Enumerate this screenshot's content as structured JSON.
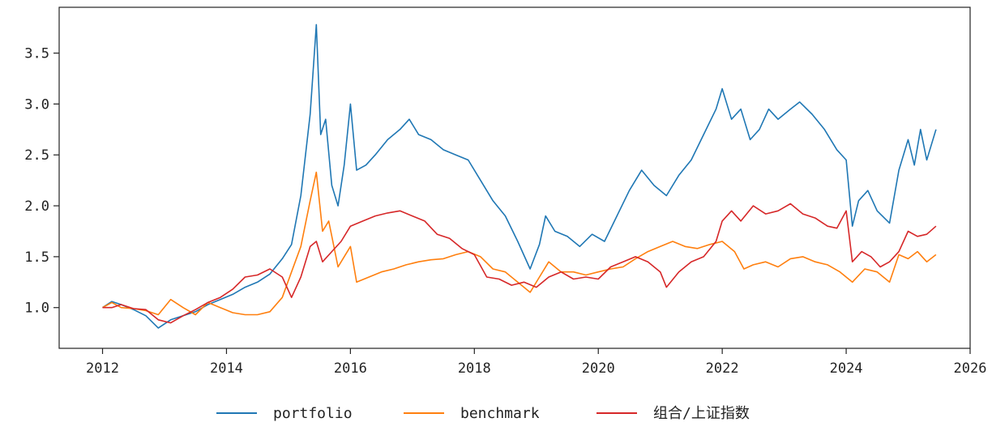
{
  "chart_data": {
    "type": "line",
    "title": "",
    "xlabel": "",
    "ylabel": "",
    "xlim": [
      2011.3,
      2026.0
    ],
    "ylim": [
      0.6,
      3.95
    ],
    "x_ticks": [
      2012,
      2014,
      2016,
      2018,
      2020,
      2022,
      2024,
      2026
    ],
    "y_ticks": [
      1.0,
      1.5,
      2.0,
      2.5,
      3.0,
      3.5
    ],
    "x_tick_labels": [
      "2012",
      "2014",
      "2016",
      "2018",
      "2020",
      "2022",
      "2024",
      "2026"
    ],
    "y_tick_labels": [
      "1.0",
      "1.5",
      "2.0",
      "2.5",
      "3.0",
      "3.5"
    ],
    "grid": false,
    "legend": "bottom-center",
    "series": [
      {
        "name": "portfolio",
        "color": "#1f77b4",
        "points": [
          [
            2012.0,
            1.0
          ],
          [
            2012.15,
            1.06
          ],
          [
            2012.3,
            1.03
          ],
          [
            2012.5,
            0.98
          ],
          [
            2012.7,
            0.92
          ],
          [
            2012.9,
            0.8
          ],
          [
            2013.1,
            0.88
          ],
          [
            2013.3,
            0.92
          ],
          [
            2013.5,
            0.96
          ],
          [
            2013.7,
            1.03
          ],
          [
            2013.9,
            1.08
          ],
          [
            2014.1,
            1.13
          ],
          [
            2014.3,
            1.2
          ],
          [
            2014.5,
            1.25
          ],
          [
            2014.7,
            1.33
          ],
          [
            2014.9,
            1.48
          ],
          [
            2015.05,
            1.62
          ],
          [
            2015.2,
            2.1
          ],
          [
            2015.35,
            2.9
          ],
          [
            2015.45,
            3.78
          ],
          [
            2015.52,
            2.7
          ],
          [
            2015.6,
            2.85
          ],
          [
            2015.7,
            2.2
          ],
          [
            2015.8,
            2.0
          ],
          [
            2015.9,
            2.4
          ],
          [
            2016.0,
            3.0
          ],
          [
            2016.1,
            2.35
          ],
          [
            2016.25,
            2.4
          ],
          [
            2016.4,
            2.5
          ],
          [
            2016.6,
            2.65
          ],
          [
            2016.8,
            2.75
          ],
          [
            2016.95,
            2.85
          ],
          [
            2017.1,
            2.7
          ],
          [
            2017.3,
            2.65
          ],
          [
            2017.5,
            2.55
          ],
          [
            2017.7,
            2.5
          ],
          [
            2017.9,
            2.45
          ],
          [
            2018.1,
            2.25
          ],
          [
            2018.3,
            2.05
          ],
          [
            2018.5,
            1.9
          ],
          [
            2018.7,
            1.65
          ],
          [
            2018.9,
            1.38
          ],
          [
            2019.05,
            1.62
          ],
          [
            2019.15,
            1.9
          ],
          [
            2019.3,
            1.75
          ],
          [
            2019.5,
            1.7
          ],
          [
            2019.7,
            1.6
          ],
          [
            2019.9,
            1.72
          ],
          [
            2020.1,
            1.65
          ],
          [
            2020.3,
            1.9
          ],
          [
            2020.5,
            2.15
          ],
          [
            2020.7,
            2.35
          ],
          [
            2020.9,
            2.2
          ],
          [
            2021.1,
            2.1
          ],
          [
            2021.3,
            2.3
          ],
          [
            2021.5,
            2.45
          ],
          [
            2021.7,
            2.7
          ],
          [
            2021.9,
            2.95
          ],
          [
            2022.0,
            3.15
          ],
          [
            2022.15,
            2.85
          ],
          [
            2022.3,
            2.95
          ],
          [
            2022.45,
            2.65
          ],
          [
            2022.6,
            2.75
          ],
          [
            2022.75,
            2.95
          ],
          [
            2022.9,
            2.85
          ],
          [
            2023.1,
            2.95
          ],
          [
            2023.25,
            3.02
          ],
          [
            2023.45,
            2.9
          ],
          [
            2023.65,
            2.75
          ],
          [
            2023.85,
            2.55
          ],
          [
            2024.0,
            2.45
          ],
          [
            2024.1,
            1.8
          ],
          [
            2024.2,
            2.05
          ],
          [
            2024.35,
            2.15
          ],
          [
            2024.5,
            1.95
          ],
          [
            2024.7,
            1.83
          ],
          [
            2024.85,
            2.35
          ],
          [
            2025.0,
            2.65
          ],
          [
            2025.1,
            2.4
          ],
          [
            2025.2,
            2.75
          ],
          [
            2025.3,
            2.45
          ],
          [
            2025.45,
            2.75
          ]
        ]
      },
      {
        "name": "benchmark",
        "color": "#ff7f0e",
        "points": [
          [
            2012.0,
            1.0
          ],
          [
            2012.15,
            1.05
          ],
          [
            2012.3,
            1.0
          ],
          [
            2012.5,
            0.99
          ],
          [
            2012.7,
            0.97
          ],
          [
            2012.9,
            0.93
          ],
          [
            2013.1,
            1.08
          ],
          [
            2013.3,
            1.0
          ],
          [
            2013.5,
            0.93
          ],
          [
            2013.7,
            1.05
          ],
          [
            2013.9,
            1.0
          ],
          [
            2014.1,
            0.95
          ],
          [
            2014.3,
            0.93
          ],
          [
            2014.5,
            0.93
          ],
          [
            2014.7,
            0.96
          ],
          [
            2014.9,
            1.1
          ],
          [
            2015.05,
            1.35
          ],
          [
            2015.2,
            1.6
          ],
          [
            2015.35,
            2.05
          ],
          [
            2015.45,
            2.33
          ],
          [
            2015.55,
            1.75
          ],
          [
            2015.65,
            1.85
          ],
          [
            2015.8,
            1.4
          ],
          [
            2015.9,
            1.5
          ],
          [
            2016.0,
            1.6
          ],
          [
            2016.1,
            1.25
          ],
          [
            2016.3,
            1.3
          ],
          [
            2016.5,
            1.35
          ],
          [
            2016.7,
            1.38
          ],
          [
            2016.9,
            1.42
          ],
          [
            2017.1,
            1.45
          ],
          [
            2017.3,
            1.47
          ],
          [
            2017.5,
            1.48
          ],
          [
            2017.7,
            1.52
          ],
          [
            2017.9,
            1.55
          ],
          [
            2018.1,
            1.5
          ],
          [
            2018.3,
            1.38
          ],
          [
            2018.5,
            1.35
          ],
          [
            2018.7,
            1.25
          ],
          [
            2018.9,
            1.15
          ],
          [
            2019.05,
            1.3
          ],
          [
            2019.2,
            1.45
          ],
          [
            2019.4,
            1.35
          ],
          [
            2019.6,
            1.35
          ],
          [
            2019.8,
            1.32
          ],
          [
            2020.0,
            1.35
          ],
          [
            2020.2,
            1.38
          ],
          [
            2020.4,
            1.4
          ],
          [
            2020.6,
            1.48
          ],
          [
            2020.8,
            1.55
          ],
          [
            2021.0,
            1.6
          ],
          [
            2021.2,
            1.65
          ],
          [
            2021.4,
            1.6
          ],
          [
            2021.6,
            1.58
          ],
          [
            2021.8,
            1.62
          ],
          [
            2022.0,
            1.65
          ],
          [
            2022.2,
            1.55
          ],
          [
            2022.35,
            1.38
          ],
          [
            2022.5,
            1.42
          ],
          [
            2022.7,
            1.45
          ],
          [
            2022.9,
            1.4
          ],
          [
            2023.1,
            1.48
          ],
          [
            2023.3,
            1.5
          ],
          [
            2023.5,
            1.45
          ],
          [
            2023.7,
            1.42
          ],
          [
            2023.9,
            1.35
          ],
          [
            2024.1,
            1.25
          ],
          [
            2024.3,
            1.38
          ],
          [
            2024.5,
            1.35
          ],
          [
            2024.7,
            1.25
          ],
          [
            2024.85,
            1.52
          ],
          [
            2025.0,
            1.48
          ],
          [
            2025.15,
            1.55
          ],
          [
            2025.3,
            1.45
          ],
          [
            2025.45,
            1.52
          ]
        ]
      },
      {
        "name": "组合/上证指数",
        "color": "#d62728",
        "points": [
          [
            2012.0,
            1.0
          ],
          [
            2012.15,
            1.0
          ],
          [
            2012.3,
            1.03
          ],
          [
            2012.5,
            0.99
          ],
          [
            2012.7,
            0.98
          ],
          [
            2012.9,
            0.88
          ],
          [
            2013.1,
            0.85
          ],
          [
            2013.3,
            0.92
          ],
          [
            2013.5,
            0.98
          ],
          [
            2013.7,
            1.05
          ],
          [
            2013.9,
            1.1
          ],
          [
            2014.1,
            1.18
          ],
          [
            2014.3,
            1.3
          ],
          [
            2014.5,
            1.32
          ],
          [
            2014.7,
            1.38
          ],
          [
            2014.9,
            1.3
          ],
          [
            2015.05,
            1.1
          ],
          [
            2015.2,
            1.3
          ],
          [
            2015.35,
            1.6
          ],
          [
            2015.45,
            1.65
          ],
          [
            2015.55,
            1.45
          ],
          [
            2015.7,
            1.55
          ],
          [
            2015.85,
            1.65
          ],
          [
            2016.0,
            1.8
          ],
          [
            2016.2,
            1.85
          ],
          [
            2016.4,
            1.9
          ],
          [
            2016.6,
            1.93
          ],
          [
            2016.8,
            1.95
          ],
          [
            2017.0,
            1.9
          ],
          [
            2017.2,
            1.85
          ],
          [
            2017.4,
            1.72
          ],
          [
            2017.6,
            1.68
          ],
          [
            2017.8,
            1.58
          ],
          [
            2018.0,
            1.52
          ],
          [
            2018.2,
            1.3
          ],
          [
            2018.4,
            1.28
          ],
          [
            2018.6,
            1.22
          ],
          [
            2018.8,
            1.25
          ],
          [
            2019.0,
            1.2
          ],
          [
            2019.2,
            1.3
          ],
          [
            2019.4,
            1.35
          ],
          [
            2019.6,
            1.28
          ],
          [
            2019.8,
            1.3
          ],
          [
            2020.0,
            1.28
          ],
          [
            2020.2,
            1.4
          ],
          [
            2020.4,
            1.45
          ],
          [
            2020.6,
            1.5
          ],
          [
            2020.8,
            1.45
          ],
          [
            2021.0,
            1.35
          ],
          [
            2021.1,
            1.2
          ],
          [
            2021.3,
            1.35
          ],
          [
            2021.5,
            1.45
          ],
          [
            2021.7,
            1.5
          ],
          [
            2021.9,
            1.65
          ],
          [
            2022.0,
            1.85
          ],
          [
            2022.15,
            1.95
          ],
          [
            2022.3,
            1.85
          ],
          [
            2022.5,
            2.0
          ],
          [
            2022.7,
            1.92
          ],
          [
            2022.9,
            1.95
          ],
          [
            2023.1,
            2.02
          ],
          [
            2023.3,
            1.92
          ],
          [
            2023.5,
            1.88
          ],
          [
            2023.7,
            1.8
          ],
          [
            2023.85,
            1.78
          ],
          [
            2024.0,
            1.95
          ],
          [
            2024.1,
            1.45
          ],
          [
            2024.25,
            1.55
          ],
          [
            2024.4,
            1.5
          ],
          [
            2024.55,
            1.4
          ],
          [
            2024.7,
            1.45
          ],
          [
            2024.85,
            1.55
          ],
          [
            2025.0,
            1.75
          ],
          [
            2025.15,
            1.7
          ],
          [
            2025.3,
            1.72
          ],
          [
            2025.45,
            1.8
          ]
        ]
      }
    ]
  }
}
